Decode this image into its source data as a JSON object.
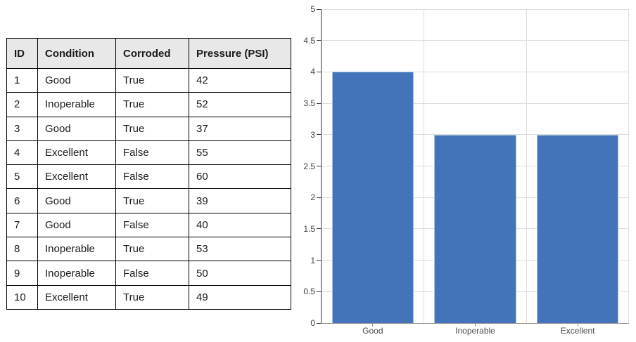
{
  "table": {
    "headers": [
      "ID",
      "Condition",
      "Corroded",
      "Pressure (PSI)"
    ],
    "rows": [
      [
        "1",
        "Good",
        "True",
        "42"
      ],
      [
        "2",
        "Inoperable",
        "True",
        "52"
      ],
      [
        "3",
        "Good",
        "True",
        "37"
      ],
      [
        "4",
        "Excellent",
        "False",
        "55"
      ],
      [
        "5",
        "Excellent",
        "False",
        "60"
      ],
      [
        "6",
        "Good",
        "True",
        "39"
      ],
      [
        "7",
        "Good",
        "False",
        "40"
      ],
      [
        "8",
        "Inoperable",
        "True",
        "53"
      ],
      [
        "9",
        "Inoperable",
        "False",
        "50"
      ],
      [
        "10",
        "Excellent",
        "True",
        "49"
      ]
    ]
  },
  "chart_data": {
    "type": "bar",
    "categories": [
      "Good",
      "Inoperable",
      "Excellent"
    ],
    "values": [
      4,
      3,
      3
    ],
    "title": "",
    "xlabel": "",
    "ylabel": "",
    "ylim": [
      0,
      5
    ],
    "ytick_step": 0.5,
    "ytick_labels": [
      "0",
      "0.5",
      "1",
      "1.5",
      "2",
      "2.5",
      "3",
      "3.5",
      "4",
      "4.5",
      "5"
    ],
    "grid": true,
    "legend": false,
    "bar_color": "#4374b9",
    "bar_border_color": "#a6c1e0",
    "gridline_color": "#dcdcdc",
    "y_axis_color": "#3a3a3a",
    "x_axis_color": "#8e8e8e",
    "label_color": "#404040"
  },
  "colors": {
    "table_header_bg": "#e8e8e8",
    "table_border": "#000000",
    "background": "#ffffff"
  }
}
